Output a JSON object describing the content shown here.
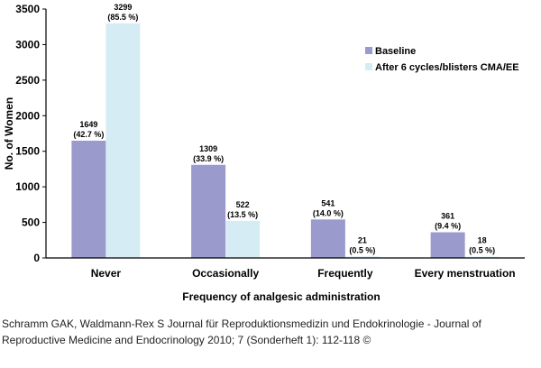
{
  "chart_data": {
    "type": "bar",
    "title": "",
    "xlabel": "Frequency of analgesic administration",
    "ylabel": "No. of Women",
    "ylim": [
      0,
      3500
    ],
    "yticks": [
      0,
      500,
      1000,
      1500,
      2000,
      2500,
      3000,
      3500
    ],
    "categories": [
      "Never",
      "Occasionally",
      "Frequently",
      "Every menstruation"
    ],
    "series": [
      {
        "name": "Baseline",
        "color": "#9a9acc",
        "values": [
          1649,
          1309,
          541,
          361
        ],
        "percent_labels": [
          "(42.7 %)",
          "(33.9 %)",
          "(14.0 %)",
          "(9.4 %)"
        ]
      },
      {
        "name": "After 6 cycles/blisters CMA/EE",
        "color": "#d6ecf4",
        "values": [
          3299,
          522,
          21,
          18
        ],
        "percent_labels": [
          "(85.5 %)",
          "(13.5 %)",
          "(0.5 %)",
          "(0.5 %)"
        ]
      }
    ],
    "legend_position": "top-right",
    "grid": false
  },
  "citation": {
    "line1": "Schramm GAK, Waldmann-Rex S Journal für Reproduktionsmedizin und Endokrinologie - Journal of",
    "line2": "Reproductive Medicine and Endocrinology 2010; 7 (Sonderheft 1): 112-118 ©"
  }
}
